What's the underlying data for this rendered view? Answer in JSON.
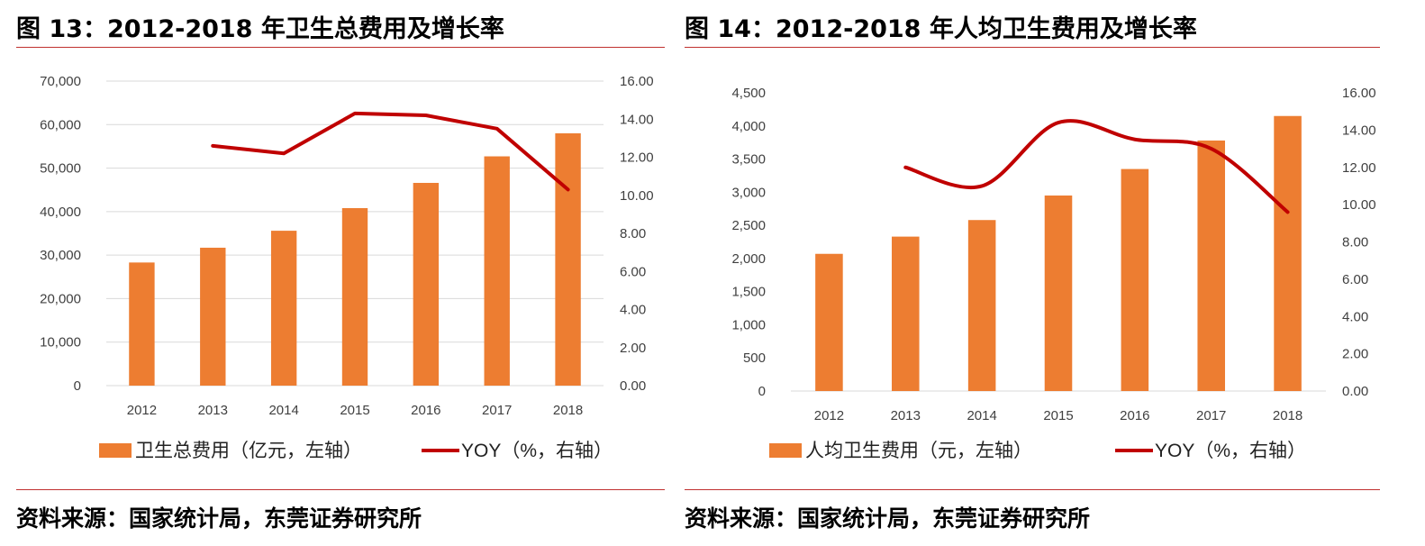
{
  "figures": [
    {
      "title": "图 13：2012-2018 年卫生总费用及增长率",
      "source": "资料来源：国家统计局，东莞证券研究所"
    },
    {
      "title": "图 14：2012-2018 年人均卫生费用及增长率",
      "source": "资料来源：国家统计局，东莞证券研究所"
    }
  ],
  "colors": {
    "bar": "#ed7d31",
    "line": "#c00000",
    "rule": "#c0312f",
    "axis": "#d9d9d9"
  },
  "chart_data": [
    {
      "type": "bar",
      "categories": [
        "2012",
        "2013",
        "2014",
        "2015",
        "2016",
        "2017",
        "2018"
      ],
      "series": [
        {
          "name": "卫生总费用（亿元，左轴）",
          "type": "bar",
          "axis": "left",
          "values": [
            28300,
            31700,
            35600,
            40800,
            46600,
            52700,
            58000
          ]
        },
        {
          "name": "YOY（%，右轴）",
          "type": "line",
          "axis": "right",
          "smooth": false,
          "values": [
            null,
            12.6,
            12.2,
            14.3,
            14.2,
            13.5,
            10.3
          ]
        }
      ],
      "y_left": {
        "min": 0,
        "max": 70000,
        "step": 10000,
        "ticks": [
          "0",
          "10,000",
          "20,000",
          "30,000",
          "40,000",
          "50,000",
          "60,000",
          "70,000"
        ]
      },
      "y_right": {
        "min": 0,
        "max": 16,
        "step": 2,
        "ticks": [
          "0.00",
          "2.00",
          "4.00",
          "6.00",
          "8.00",
          "10.00",
          "12.00",
          "14.00",
          "16.00"
        ]
      },
      "gridlines": true,
      "legend_position": "bottom"
    },
    {
      "type": "bar",
      "categories": [
        "2012",
        "2013",
        "2014",
        "2015",
        "2016",
        "2017",
        "2018"
      ],
      "series": [
        {
          "name": "人均卫生费用（元，左轴）",
          "type": "bar",
          "axis": "left",
          "values": [
            2070,
            2330,
            2580,
            2950,
            3350,
            3780,
            4150
          ]
        },
        {
          "name": "YOY（%，右轴）",
          "type": "line",
          "axis": "right",
          "smooth": true,
          "values": [
            null,
            12.0,
            11.0,
            14.4,
            13.5,
            13.0,
            9.6
          ]
        }
      ],
      "y_left": {
        "min": 0,
        "max": 4500,
        "step": 500,
        "ticks": [
          "0",
          "500",
          "1,000",
          "1,500",
          "2,000",
          "2,500",
          "3,000",
          "3,500",
          "4,000",
          "4,500"
        ]
      },
      "y_right": {
        "min": 0,
        "max": 16,
        "step": 2,
        "ticks": [
          "0.00",
          "2.00",
          "4.00",
          "6.00",
          "8.00",
          "10.00",
          "12.00",
          "14.00",
          "16.00"
        ]
      },
      "gridlines": false,
      "legend_position": "bottom"
    }
  ]
}
